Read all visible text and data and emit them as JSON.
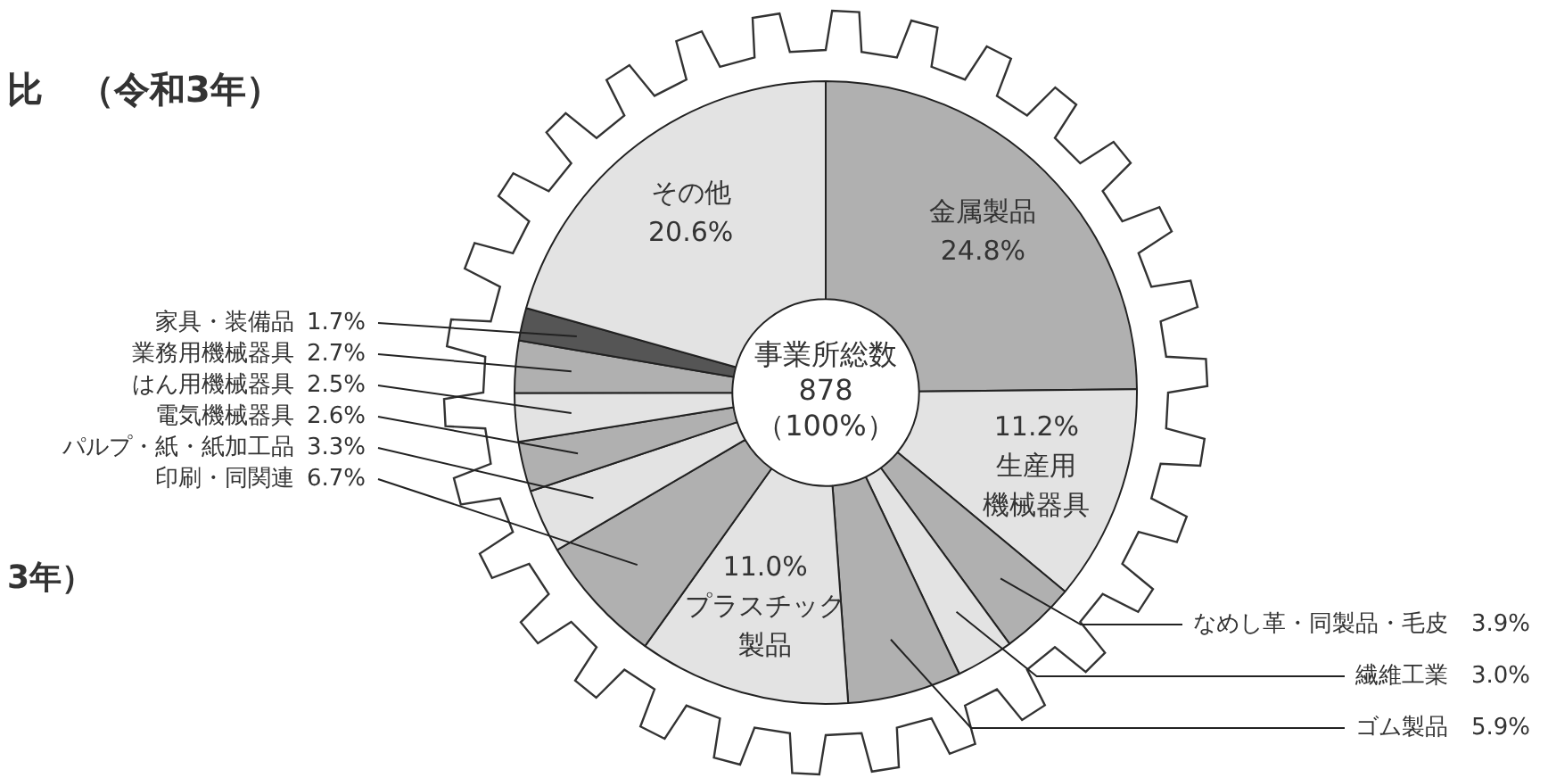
{
  "chart_data": {
    "type": "donut",
    "title": "比　（令和3年）",
    "categories": [
      "金属製品",
      "生産用機械器具",
      "なめし革・同製品・毛皮",
      "繊維工業",
      "ゴム製品",
      "プラスチック製品",
      "印刷・同関連",
      "パルプ・紙・紙加工品",
      "電気機械器具",
      "はん用機械器具",
      "業務用機械器具",
      "家具・装備品",
      "その他"
    ],
    "values": [
      24.8,
      11.2,
      3.9,
      3.0,
      5.9,
      11.0,
      6.7,
      3.3,
      2.6,
      2.5,
      2.7,
      1.7,
      20.6
    ],
    "value_labels": [
      "24.8%",
      "11.2%",
      "3.9%",
      "3.0%",
      "5.9%",
      "11.0%",
      "6.7%",
      "3.3%",
      "2.6%",
      "2.5%",
      "2.7%",
      "1.7%",
      "20.6%"
    ],
    "colors": [
      "#b0b0b0",
      "#e3e3e3",
      "#b0b0b0",
      "#e3e3e3",
      "#b0b0b0",
      "#e3e3e3",
      "#b0b0b0",
      "#e3e3e3",
      "#b0b0b0",
      "#e3e3e3",
      "#b0b0b0",
      "#555555",
      "#e3e3e3"
    ],
    "legend": false,
    "annotations": [
      "事業所総数\n878\n（100%）",
      "3年）"
    ]
  }
}
